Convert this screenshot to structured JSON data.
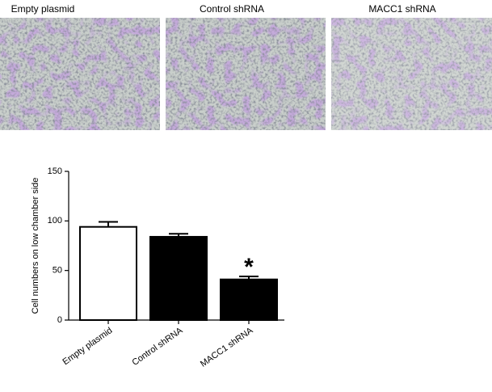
{
  "images": {
    "labels": [
      "Empty plasmid",
      "Control shRNA",
      "MACC1 shRNA"
    ]
  },
  "chart_data": {
    "type": "bar",
    "ylabel": "Cell numbers on low chamber side",
    "categories": [
      "Empty plasmid",
      "Control shRNA",
      "MACC1 shRNA"
    ],
    "values": [
      94,
      84,
      41
    ],
    "errors": [
      5,
      3,
      3
    ],
    "colors": [
      "#ffffff",
      "#000000",
      "#000000"
    ],
    "edgecolor": "#000000",
    "ylim": [
      0,
      150
    ],
    "yticks": [
      0,
      50,
      100,
      150
    ],
    "annotation": "*"
  }
}
